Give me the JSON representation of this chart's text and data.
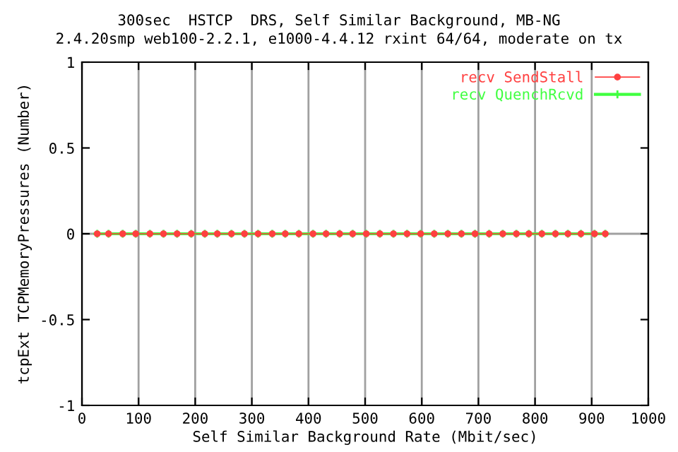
{
  "chart_data": {
    "type": "line",
    "title": "300sec  HSTCP  DRS, Self Similar Background, MB-NG",
    "subtitle": "2.4.20smp web100-2.2.1, e1000-4.4.12 rxint 64/64, moderate on tx",
    "xlabel": "Self Similar Background Rate (Mbit/sec)",
    "ylabel": "tcpExt TCPMemoryPressures (Number)",
    "x": [
      27,
      47,
      72,
      95,
      120,
      144,
      168,
      193,
      217,
      239,
      264,
      287,
      311,
      336,
      359,
      383,
      408,
      431,
      455,
      478,
      502,
      526,
      550,
      574,
      598,
      622,
      646,
      670,
      694,
      719,
      743,
      767,
      789,
      812,
      836,
      858,
      881,
      905,
      924
    ],
    "series": [
      {
        "name": "recv SendStall",
        "color": "#ff4040",
        "marker": "circle",
        "values": [
          0,
          0,
          0,
          0,
          0,
          0,
          0,
          0,
          0,
          0,
          0,
          0,
          0,
          0,
          0,
          0,
          0,
          0,
          0,
          0,
          0,
          0,
          0,
          0,
          0,
          0,
          0,
          0,
          0,
          0,
          0,
          0,
          0,
          0,
          0,
          0,
          0,
          0,
          0
        ]
      },
      {
        "name": "recv QuenchRcvd",
        "color": "#40ff40",
        "values": [
          0,
          0,
          0,
          0,
          0,
          0,
          0,
          0,
          0,
          0,
          0,
          0,
          0,
          0,
          0,
          0,
          0,
          0,
          0,
          0,
          0,
          0,
          0,
          0,
          0,
          0,
          0,
          0,
          0,
          0,
          0,
          0,
          0,
          0,
          0,
          0,
          0,
          0,
          0
        ]
      }
    ],
    "xlim": [
      0,
      1000
    ],
    "xticks": [
      0,
      100,
      200,
      300,
      400,
      500,
      600,
      700,
      800,
      900,
      1000
    ],
    "ylim": [
      -1,
      1
    ],
    "yticks": [
      -1,
      -0.5,
      0,
      0.5,
      1
    ],
    "ref_lines": [
      {
        "axis": "y",
        "value": 0,
        "color": "#a0a0a0"
      }
    ],
    "grid": "x",
    "legend": "top right",
    "marker": "cross",
    "line_style": "solid"
  }
}
